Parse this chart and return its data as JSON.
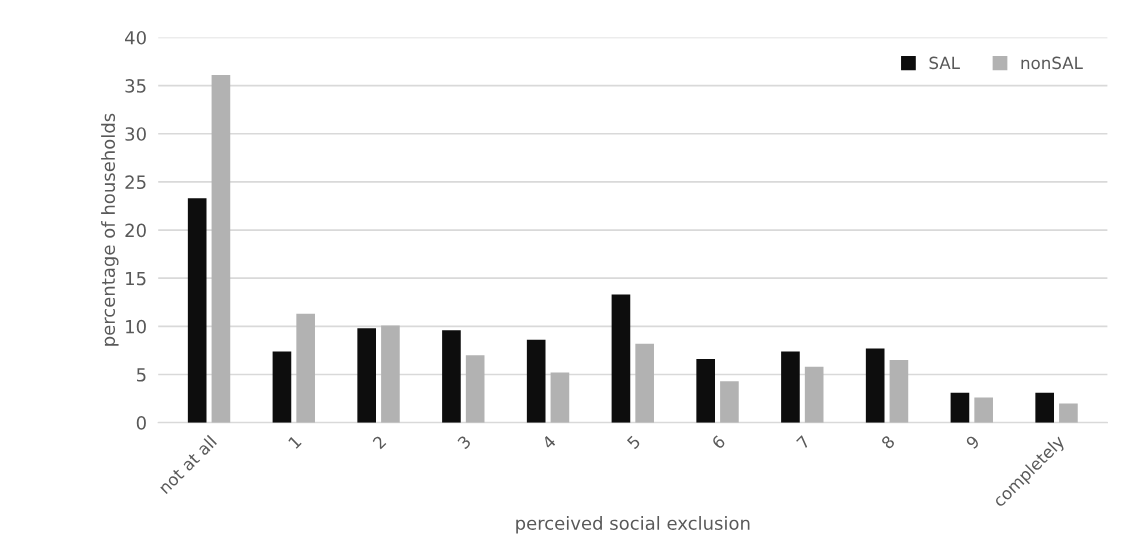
{
  "chart_data": {
    "type": "bar",
    "xlabel": "perceived social exclusion",
    "ylabel": "percentage of households",
    "categories": [
      "not at all",
      "1",
      "2",
      "3",
      "4",
      "5",
      "6",
      "7",
      "8",
      "9",
      "completely"
    ],
    "series": [
      {
        "name": "SAL",
        "color": "#0d0d0d",
        "values": [
          23.3,
          7.4,
          9.8,
          9.6,
          8.6,
          13.3,
          6.6,
          7.4,
          7.7,
          3.1,
          3.1
        ]
      },
      {
        "name": "nonSAL",
        "color": "#b2b2b2",
        "values": [
          36.1,
          11.3,
          10.1,
          7.0,
          5.2,
          8.2,
          4.3,
          5.8,
          6.5,
          2.6,
          2.0
        ]
      }
    ],
    "ylim": [
      0,
      40
    ],
    "yticks": [
      0,
      5,
      10,
      15,
      20,
      25,
      30,
      35,
      40
    ],
    "grid": "y",
    "legend": "top right"
  }
}
